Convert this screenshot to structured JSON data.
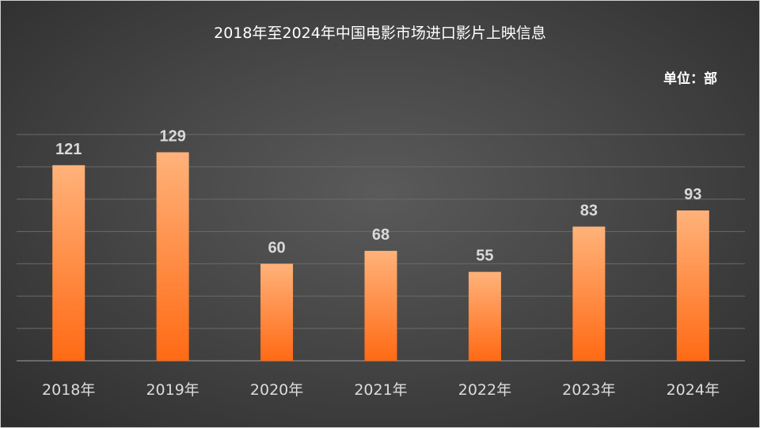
{
  "chart_data": {
    "type": "bar",
    "title": "2018年至2024年中国电影市场进口影片上映信息",
    "unit_label": "单位：部",
    "categories": [
      "2018年",
      "2019年",
      "2020年",
      "2021年",
      "2022年",
      "2023年",
      "2024年"
    ],
    "values": [
      121,
      129,
      60,
      68,
      55,
      83,
      93
    ],
    "ylim": [
      0,
      140
    ],
    "grid": true,
    "data_labels": true,
    "colors": {
      "bar_top": "#ffb27a",
      "bar_bottom": "#ff6a14",
      "gridline": "#6a6a6a",
      "text": "#ffffff"
    }
  }
}
